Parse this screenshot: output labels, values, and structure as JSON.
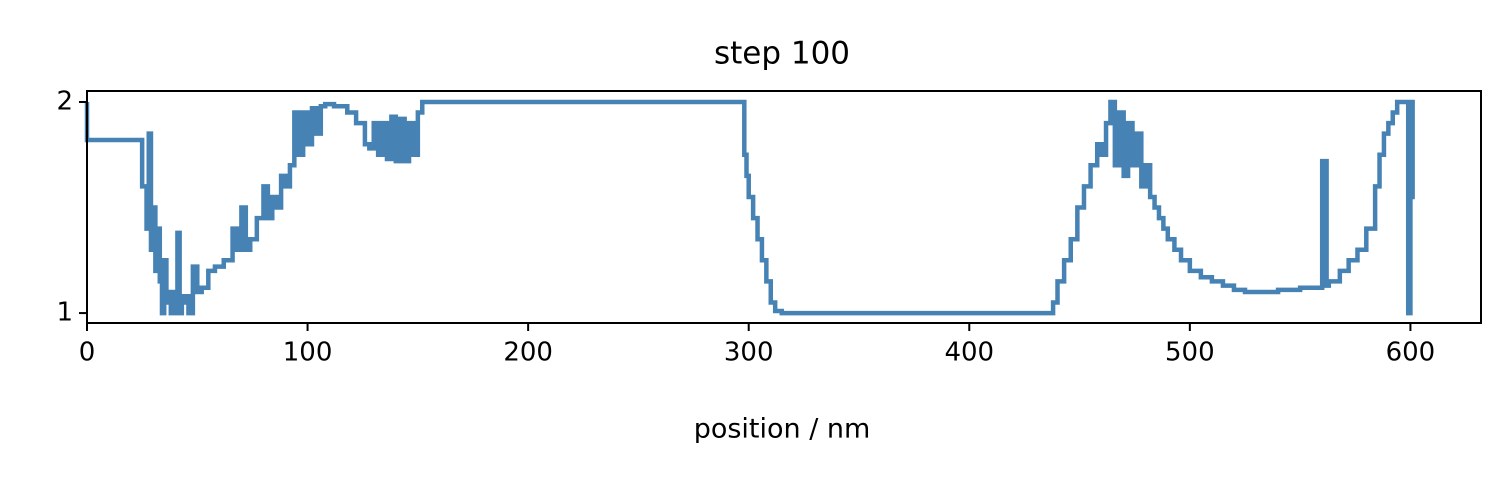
{
  "chart_data": {
    "type": "line",
    "title": "step 100",
    "x_label": "position / nm",
    "drawstyle": "steps-pre",
    "color": "#4682b4",
    "x": [
      0,
      25,
      27,
      28,
      29,
      30,
      31,
      32,
      33,
      34,
      35,
      36,
      37,
      38,
      40,
      41,
      42,
      43,
      44,
      46,
      48,
      50,
      52,
      55,
      58,
      62,
      66,
      68,
      70,
      72,
      74,
      77,
      80,
      82,
      84,
      86,
      88,
      90,
      92,
      94,
      96,
      98,
      100,
      102,
      104,
      106,
      108,
      112,
      118,
      122,
      126,
      128,
      130,
      132,
      134,
      136,
      138,
      140,
      142,
      144,
      146,
      148,
      150,
      152,
      155,
      298,
      299,
      300,
      302,
      304,
      306,
      308,
      310,
      312,
      315,
      318,
      438,
      440,
      443,
      446,
      449,
      452,
      455,
      458,
      460,
      462,
      464,
      466,
      468,
      470,
      472,
      474,
      476,
      478,
      480,
      482,
      484,
      486,
      488,
      490,
      493,
      496,
      500,
      505,
      510,
      515,
      520,
      525,
      530,
      540,
      550,
      560,
      562,
      563,
      568,
      572,
      576,
      580,
      584,
      586,
      588,
      590,
      592,
      594,
      596,
      599,
      600,
      601,
      602
    ],
    "values": [
      2.0,
      1.82,
      1.6,
      1.4,
      1.85,
      1.3,
      1.5,
      1.2,
      1.4,
      1.15,
      1.0,
      1.25,
      1.05,
      1.1,
      1.0,
      1.1,
      1.38,
      1.0,
      1.05,
      1.08,
      1.0,
      1.22,
      1.1,
      1.12,
      1.2,
      1.22,
      1.25,
      1.4,
      1.3,
      1.5,
      1.3,
      1.35,
      1.45,
      1.6,
      1.45,
      1.55,
      1.5,
      1.65,
      1.6,
      1.7,
      1.95,
      1.75,
      1.95,
      1.8,
      1.97,
      1.85,
      1.98,
      1.99,
      1.98,
      1.95,
      1.9,
      1.8,
      1.78,
      1.9,
      1.75,
      1.9,
      1.73,
      1.93,
      1.72,
      1.92,
      1.72,
      1.9,
      1.75,
      1.95,
      2.0,
      2.0,
      1.75,
      1.65,
      1.55,
      1.45,
      1.35,
      1.25,
      1.15,
      1.05,
      1.01,
      1.0,
      1.0,
      1.05,
      1.15,
      1.25,
      1.35,
      1.5,
      1.6,
      1.7,
      1.8,
      1.75,
      1.9,
      2.0,
      1.7,
      1.95,
      1.65,
      1.9,
      1.7,
      1.85,
      1.6,
      1.7,
      1.55,
      1.5,
      1.45,
      1.4,
      1.35,
      1.3,
      1.25,
      1.2,
      1.17,
      1.15,
      1.13,
      1.11,
      1.1,
      1.1,
      1.11,
      1.12,
      1.72,
      1.13,
      1.15,
      1.2,
      1.25,
      1.3,
      1.4,
      1.6,
      1.75,
      1.85,
      1.9,
      1.95,
      2.0,
      2.0,
      1.0,
      2.0,
      1.55
    ],
    "xlim": [
      0,
      632
    ],
    "ylim": [
      0.953,
      2.052
    ],
    "xticks": [
      0,
      100,
      200,
      300,
      400,
      500,
      600
    ],
    "yticks": [
      1,
      2
    ]
  }
}
